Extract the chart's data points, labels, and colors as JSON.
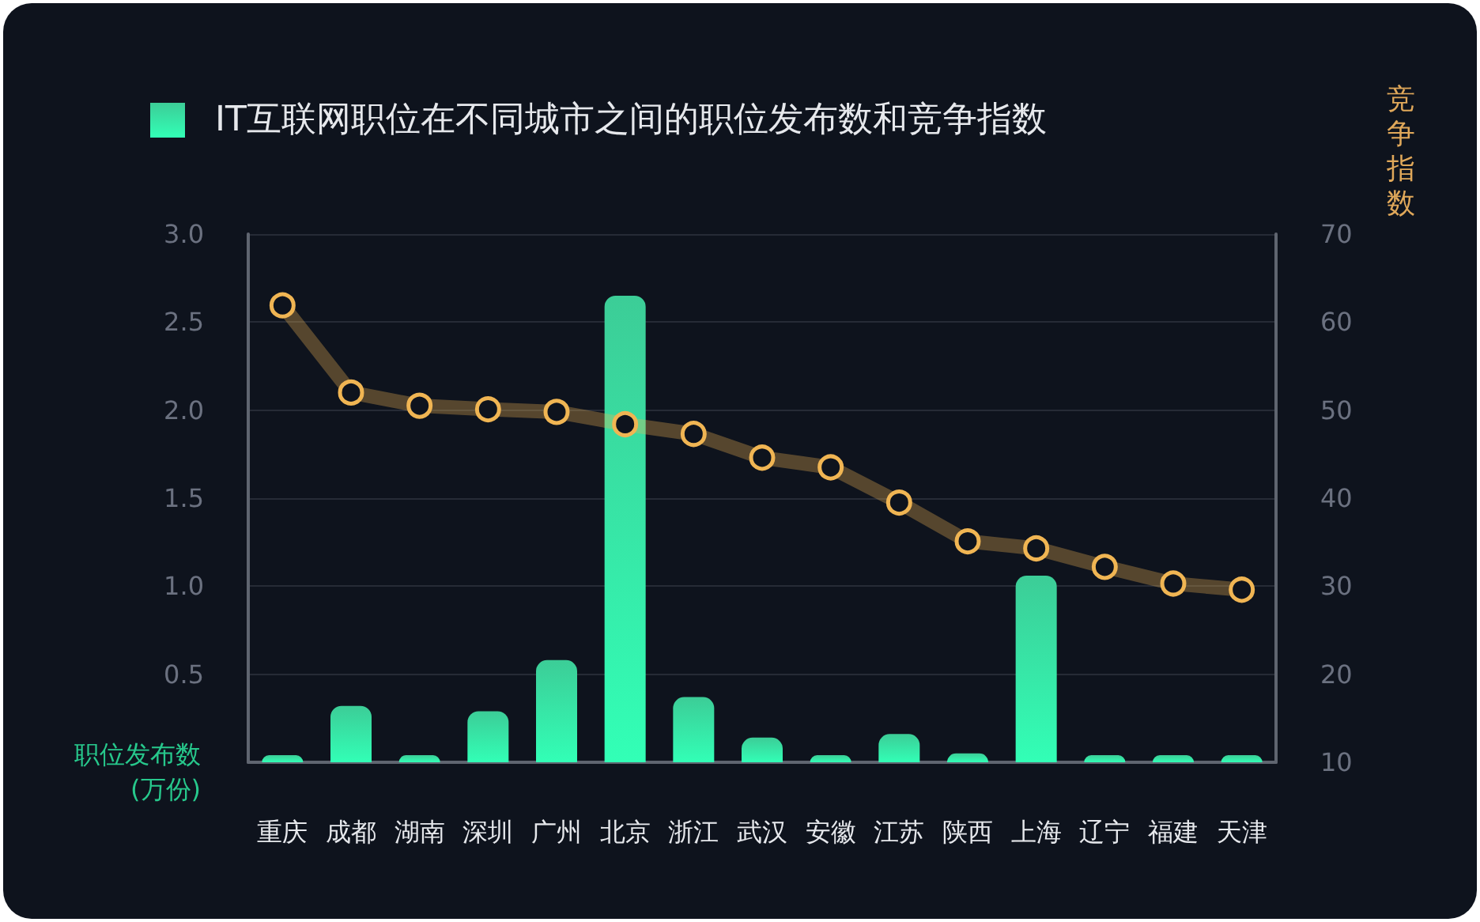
{
  "chart_data": {
    "type": "bar",
    "ylabel": "职位发布数\n(万份)",
    "y2label": "竞争指数",
    "categories": [
      "重庆",
      "成都",
      "湖南",
      "深圳",
      "广州",
      "北京",
      "浙江",
      "武汉",
      "安徽",
      "江苏",
      "陕西",
      "上海",
      "辽宁",
      "福建",
      "天津"
    ],
    "series": [
      {
        "name": "IT互联网职位在不同城市之间的职位发布数和竞争指数",
        "color": "#27c88c",
        "values": [
          0.04,
          0.32,
          0.04,
          0.29,
          0.58,
          2.65,
          0.37,
          0.14,
          0.04,
          0.16,
          0.05,
          1.06,
          0.04,
          0.04,
          0.04
        ]
      },
      {
        "type": "line",
        "axis": "y2",
        "color": "#f0b553",
        "values": [
          61.9,
          52.0,
          50.5,
          50.1,
          49.8,
          48.4,
          47.3,
          44.6,
          43.5,
          39.5,
          35.1,
          34.3,
          32.2,
          30.3,
          29.6
        ]
      }
    ],
    "ylim": [
      0,
      3
    ],
    "yticks": [
      0.5,
      {
        "value": 1,
        "label": "1.0"
      },
      1.5,
      {
        "value": 2,
        "label": "2.0"
      },
      2.5,
      {
        "value": 3,
        "label": "3.0"
      }
    ],
    "y2lim": [
      10,
      70
    ],
    "y2ticks": [
      10,
      20,
      30,
      40,
      50,
      60,
      70
    ],
    "grid": "y",
    "legend": "top left",
    "marker": "circle"
  }
}
